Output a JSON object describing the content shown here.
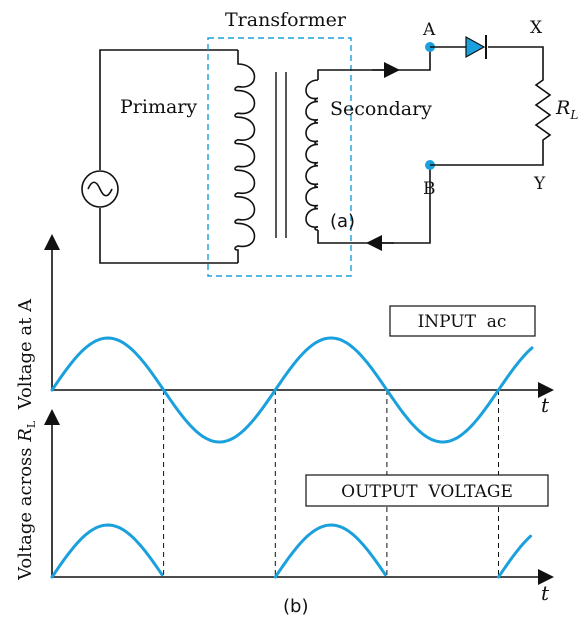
{
  "circuit": {
    "transformer_label": "Transformer",
    "primary_label": "Primary",
    "secondary_label": "Secondary",
    "terminal_a": "A",
    "terminal_b": "B",
    "terminal_x": "X",
    "terminal_y": "Y",
    "resistor_label": "R",
    "resistor_subscript": "L",
    "caption": "(a)",
    "accent_color": "#1aa0dc"
  },
  "graphs": {
    "input_ylabel": "Voltage at A",
    "output_ylabel_prefix": "Voltage across ",
    "output_ylabel_symbol": "R",
    "output_ylabel_subscript": "L",
    "input_box": "INPUT  ac",
    "output_box": "OUTPUT  VOLTAGE",
    "xlabel": "t",
    "caption": "(b)"
  },
  "chart_data": [
    {
      "type": "line",
      "name": "input",
      "waveform": "sine",
      "cycles": 2.15,
      "amplitude": 1,
      "xlabel": "t",
      "ylabel": "Voltage at A",
      "annotation": "INPUT  ac"
    },
    {
      "type": "line",
      "name": "output",
      "waveform": "half-wave-rectified sine",
      "cycles": 2.15,
      "amplitude": 1,
      "xlabel": "t",
      "ylabel": "Voltage across R_L",
      "annotation": "OUTPUT  VOLTAGE"
    }
  ]
}
